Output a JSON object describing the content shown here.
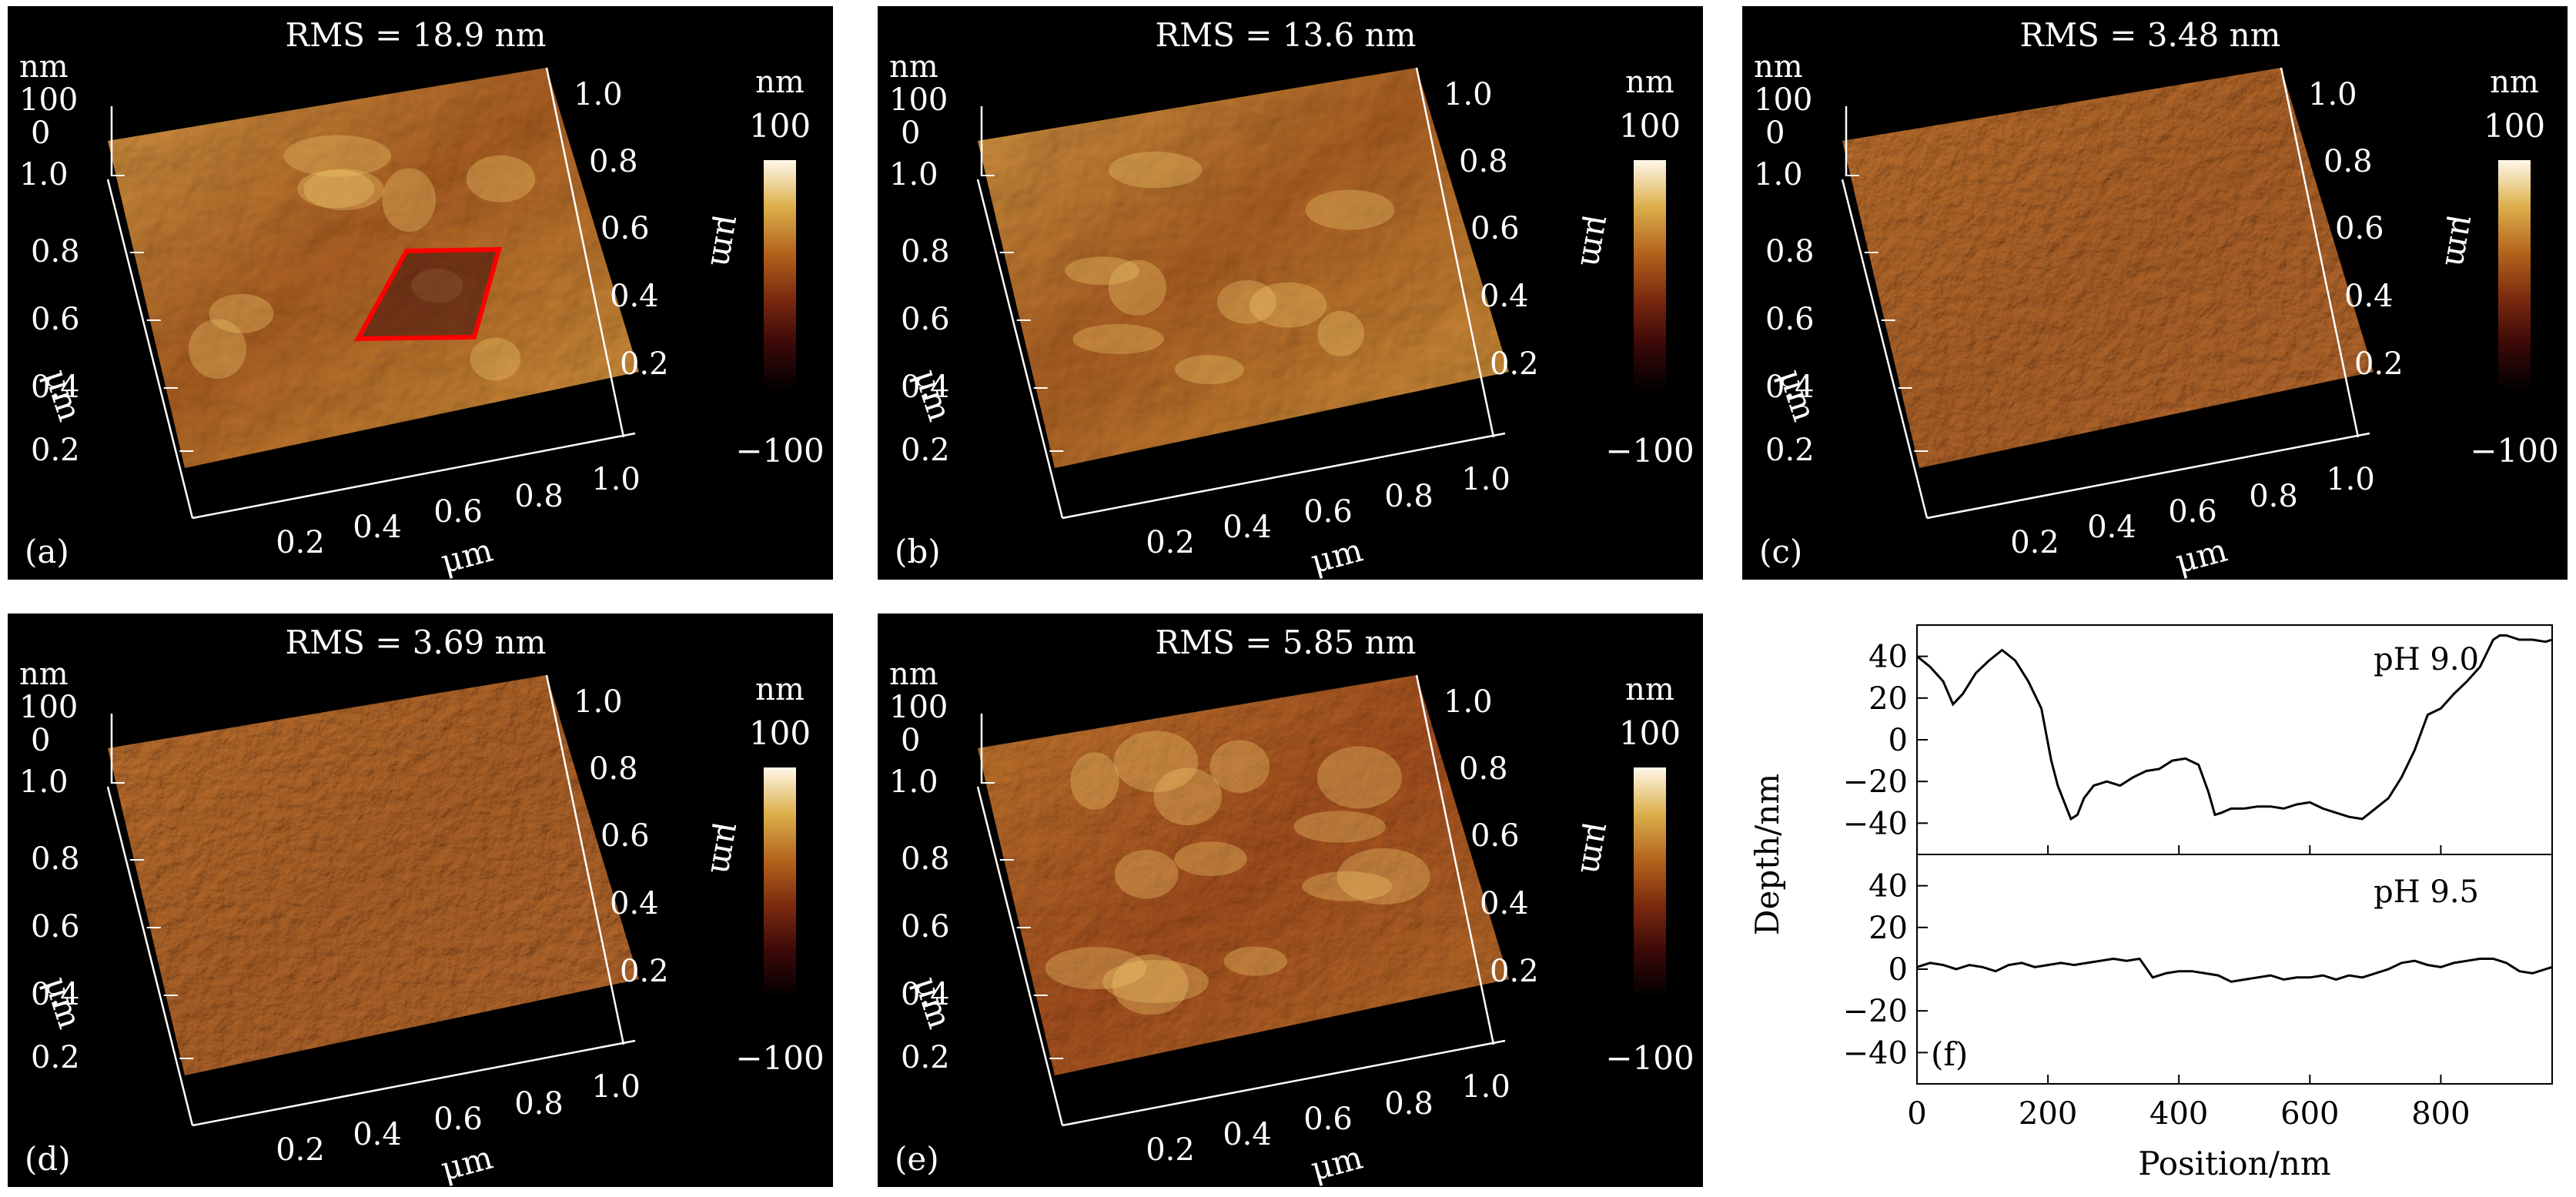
{
  "panels": [
    {
      "id": "a",
      "rms": "RMS = 18.9 nm",
      "letter": "(a)",
      "roughness": "high",
      "has_marked_region": true
    },
    {
      "id": "b",
      "rms": "RMS = 13.6 nm",
      "letter": "(b)",
      "roughness": "high"
    },
    {
      "id": "c",
      "rms": "RMS = 3.48 nm",
      "letter": "(c)",
      "roughness": "low"
    },
    {
      "id": "d",
      "rms": "RMS = 3.69 nm",
      "letter": "(d)",
      "roughness": "low"
    },
    {
      "id": "e",
      "rms": "RMS = 5.85 nm",
      "letter": "(e)",
      "roughness": "medium"
    }
  ],
  "axes3d": {
    "z_unit": "nm",
    "z_ticks": [
      "100",
      "0"
    ],
    "y_ticks": [
      "1.0",
      "0.8",
      "0.6",
      "0.4",
      "0.2"
    ],
    "y_label": "μm",
    "x_ticks": [
      "0.2",
      "0.4",
      "0.6",
      "0.8",
      "1.0"
    ],
    "x_label": "μm",
    "right_ticks": [
      "1.0",
      "0.8",
      "0.6",
      "0.4",
      "0.2"
    ],
    "right_label": "μm"
  },
  "colorbar": {
    "unit": "nm",
    "max": "100",
    "min": "−100",
    "colors": [
      "#000000",
      "#3a0808",
      "#7a2a0e",
      "#b4641c",
      "#dcb04c",
      "#fff8ea"
    ]
  },
  "chart_data": [
    {
      "type": "line",
      "xlabel": "Position/nm",
      "ylabel": "Depth/nm",
      "panel_label": "(f)",
      "xlim": [
        0,
        970
      ],
      "x_ticks": [
        "0",
        "200",
        "400",
        "600",
        "800"
      ],
      "subplots": [
        {
          "annotation": "pH 9.0",
          "ylim": [
            -55,
            55
          ],
          "y_ticks": [
            "40",
            "20",
            "0",
            "−20",
            "−40"
          ],
          "series": [
            {
              "x": [
                0,
                20,
                40,
                55,
                70,
                90,
                110,
                130,
                150,
                170,
                190,
                205,
                215,
                225,
                235,
                245,
                255,
                270,
                290,
                310,
                330,
                350,
                370,
                390,
                410,
                430,
                445,
                455,
                465,
                480,
                500,
                520,
                540,
                560,
                580,
                600,
                620,
                640,
                660,
                680,
                700,
                720,
                740,
                760,
                780,
                800,
                820,
                840,
                860,
                880,
                890,
                900,
                920,
                940,
                960,
                970
              ],
              "y": [
                40,
                35,
                28,
                17,
                22,
                32,
                38,
                43,
                38,
                28,
                15,
                -10,
                -22,
                -30,
                -38,
                -36,
                -28,
                -22,
                -20,
                -22,
                -18,
                -15,
                -14,
                -10,
                -9,
                -12,
                -25,
                -36,
                -35,
                -33,
                -33,
                -32,
                -32,
                -33,
                -31,
                -30,
                -33,
                -35,
                -37,
                -38,
                -33,
                -28,
                -18,
                -5,
                12,
                15,
                22,
                28,
                35,
                48,
                50,
                50,
                48,
                48,
                47,
                48
              ],
              "color": "#000000"
            }
          ]
        },
        {
          "annotation": "pH 9.5",
          "ylim": [
            -55,
            55
          ],
          "y_ticks": [
            "40",
            "20",
            "0",
            "−20",
            "−40"
          ],
          "series": [
            {
              "x": [
                0,
                20,
                40,
                60,
                80,
                100,
                120,
                140,
                160,
                180,
                200,
                220,
                240,
                260,
                280,
                300,
                320,
                340,
                360,
                380,
                400,
                420,
                440,
                460,
                480,
                500,
                520,
                540,
                560,
                580,
                600,
                620,
                640,
                660,
                680,
                700,
                720,
                740,
                760,
                780,
                800,
                820,
                840,
                860,
                880,
                900,
                920,
                940,
                960,
                970
              ],
              "y": [
                1,
                3,
                2,
                0,
                2,
                1,
                -1,
                2,
                3,
                1,
                2,
                3,
                2,
                3,
                4,
                5,
                4,
                5,
                -4,
                -2,
                -1,
                -1,
                -2,
                -3,
                -6,
                -5,
                -4,
                -3,
                -5,
                -4,
                -4,
                -3,
                -5,
                -3,
                -4,
                -2,
                0,
                3,
                4,
                2,
                1,
                3,
                4,
                5,
                5,
                3,
                -1,
                -2,
                0,
                1
              ],
              "color": "#000000"
            }
          ]
        }
      ]
    }
  ]
}
